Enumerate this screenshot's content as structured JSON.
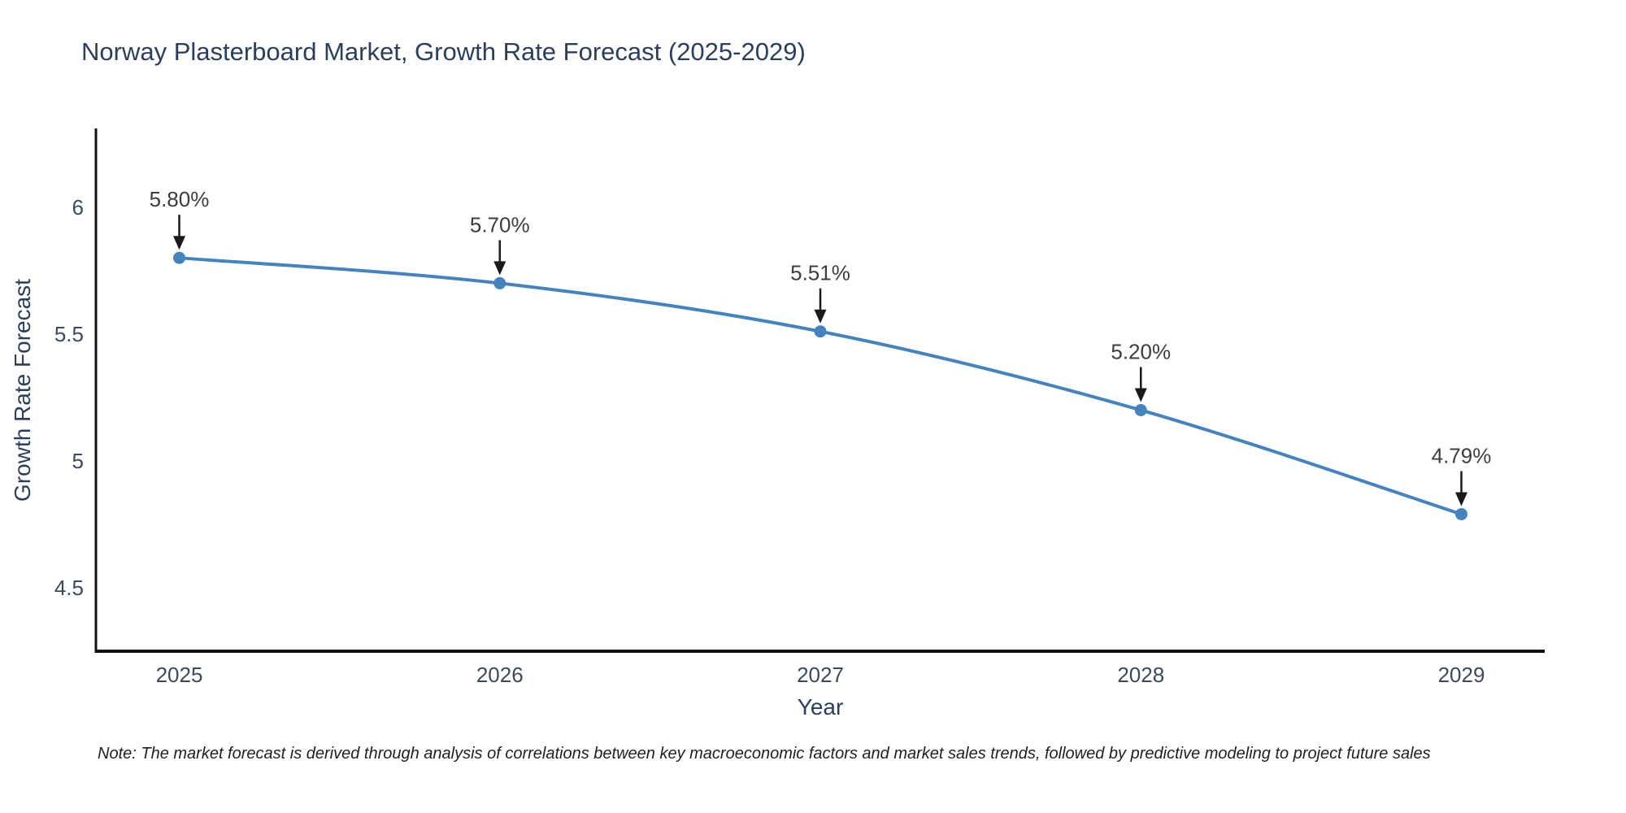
{
  "footnote": {
    "text": "Note: The market forecast is derived through analysis of correlations between key macroeconomic factors and market sales trends, followed by predictive modeling to project future sales"
  },
  "chart_data": {
    "type": "line",
    "title": "Norway Plasterboard Market, Growth Rate Forecast (2025-2029)",
    "xlabel": "Year",
    "ylabel": "Growth Rate Forecast",
    "x": [
      2025,
      2026,
      2027,
      2028,
      2029
    ],
    "values": [
      5.8,
      5.7,
      5.51,
      5.2,
      4.79
    ],
    "point_labels": [
      "5.80%",
      "5.70%",
      "5.51%",
      "5.20%",
      "4.79%"
    ],
    "xticks": [
      "2025",
      "2026",
      "2027",
      "2028",
      "2029"
    ],
    "yticks": [
      {
        "value": 4.5,
        "label": "4.5"
      },
      {
        "value": 5,
        "label": "5"
      },
      {
        "value": 5.5,
        "label": "5.5"
      },
      {
        "value": 6,
        "label": "6"
      }
    ],
    "xlim": [
      2024.74,
      2029.26
    ],
    "ylim": [
      4.25,
      6.31
    ],
    "grid": false,
    "legend": false,
    "line_shape": "spline",
    "colors": {
      "line": "#4283c0",
      "marker": "#4283c0",
      "axis": "#111111",
      "annotation_arrow": "#1a1a1a",
      "annotation_text": "#3d3d3d",
      "tick_text": "#3c4a60",
      "title_text": "#2a3f5f"
    }
  }
}
